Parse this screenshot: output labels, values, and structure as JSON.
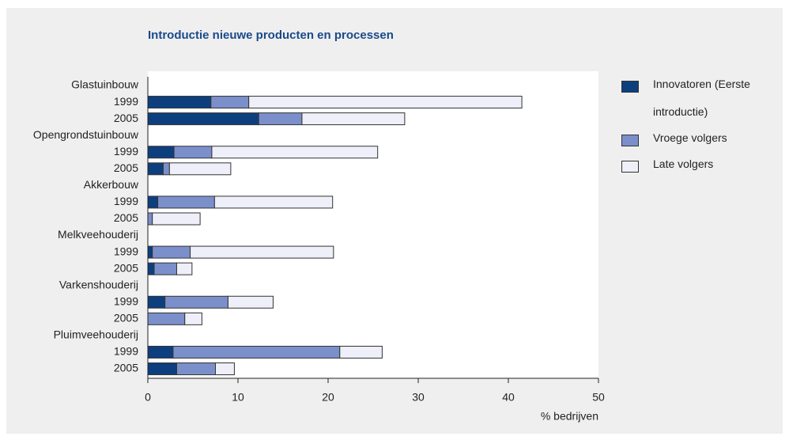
{
  "chart_data": {
    "type": "stacked_bar_horizontal",
    "title": "Introductie nieuwe producten en processen",
    "x_label": "% bedrijven",
    "categories": [
      "Glastuinbouw",
      "1999",
      "2005",
      "Opengrondstuinbouw",
      "1999",
      "2005",
      "Akkerbouw",
      "1999",
      "2005",
      "Melkveehouderij",
      "1999",
      "2005",
      "Varkenshouderij",
      "1999",
      "2005",
      "Pluimveehouderij",
      "1999",
      "2005"
    ],
    "series": [
      {
        "name": "Innovatoren (Eerste introductie)",
        "color": "#0d3f7f",
        "values": [
          null,
          7.0,
          12.3,
          null,
          2.9,
          1.7,
          null,
          1.1,
          0,
          null,
          0.5,
          0.7,
          null,
          1.9,
          0,
          null,
          2.8,
          3.2
        ]
      },
      {
        "name": "Vroege volgers",
        "color": "#7b8fca",
        "values": [
          null,
          4.2,
          4.8,
          null,
          4.2,
          0.7,
          null,
          6.3,
          0.5,
          null,
          4.2,
          2.5,
          null,
          7.0,
          4.1,
          null,
          18.5,
          4.3
        ]
      },
      {
        "name": "Late volgers",
        "color": "#eeeff8",
        "values": [
          null,
          30.3,
          11.4,
          null,
          18.4,
          6.8,
          null,
          13.1,
          5.3,
          null,
          15.9,
          1.7,
          null,
          5.0,
          1.9,
          null,
          4.7,
          2.1
        ]
      }
    ],
    "xlim": [
      0,
      50
    ],
    "xticks": [
      0,
      10,
      20,
      30,
      40,
      50
    ],
    "legend": "right"
  }
}
